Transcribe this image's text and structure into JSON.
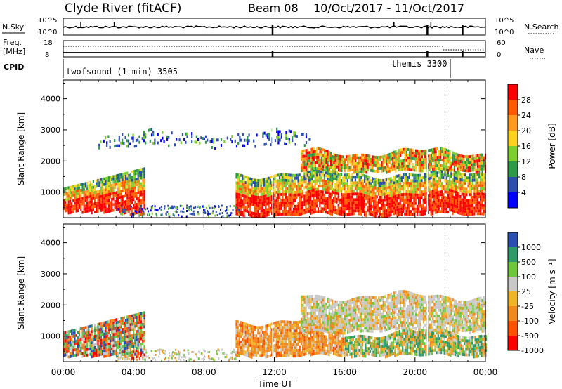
{
  "header": {
    "station": "Clyde River (fitACF)",
    "beam": "Beam 08",
    "date_range": "10/Oct/2017 - 11/Oct/2017"
  },
  "status_rows": {
    "nsky_label": "N.Sky",
    "nsearch_label": "N.Search",
    "freq_label_1": "Freq.",
    "freq_label_2": "[MHz]",
    "nave_label": "Nave",
    "cpid_label": "CPID",
    "nsky_ticks": [
      "10^5",
      "10^0"
    ],
    "nsearch_ticks": [
      "10^5",
      "10^0"
    ],
    "freq_ticks": [
      "18",
      "8"
    ],
    "nave_ticks": [
      "60",
      "0"
    ],
    "cpid_modes": [
      {
        "label": "twofsound (1-min) 3505",
        "start_h": 0,
        "end_h": 21.7
      },
      {
        "label": "themis 3300",
        "start_h": 21.7,
        "end_h": 24
      }
    ]
  },
  "chart_data": [
    {
      "type": "heatmap",
      "name": "power",
      "xlabel": "",
      "ylabel": "Slant Range [km]",
      "xlim": [
        0,
        24
      ],
      "ylim": [
        180,
        4600
      ],
      "yticks": [
        "1000",
        "2000",
        "3000",
        "4000"
      ],
      "xticks": [
        "00:00",
        "04:00",
        "08:00",
        "12:00",
        "16:00",
        "20:00",
        "00:00"
      ],
      "colorbar": {
        "label": "Power [dB]",
        "ticks": [
          "28",
          "24",
          "20",
          "16",
          "12",
          "8",
          "4"
        ],
        "colors": [
          "#ff0000",
          "#ff5a00",
          "#ff9a1e",
          "#ffd21e",
          "#7ccf2c",
          "#2e9a48",
          "#2c4fae",
          "#0000ff"
        ]
      },
      "echo_regions": [
        {
          "t0": 0.0,
          "t1": 4.6,
          "r0": 350,
          "r1": 1800,
          "level": "high"
        },
        {
          "t0": 9.8,
          "t1": 24.0,
          "r0": 300,
          "r1": 1600,
          "level": "high"
        },
        {
          "t0": 13.5,
          "t1": 24.0,
          "r0": 1700,
          "r1": 2300,
          "level": "mid"
        },
        {
          "t0": 2.0,
          "t1": 14.0,
          "r0": 2500,
          "r1": 2900,
          "level": "low"
        }
      ]
    },
    {
      "type": "heatmap",
      "name": "velocity",
      "xlabel": "Time UT",
      "ylabel": "Slant Range [km]",
      "xlim": [
        0,
        24
      ],
      "ylim": [
        180,
        4600
      ],
      "yticks": [
        "1000",
        "2000",
        "3000",
        "4000"
      ],
      "xticks": [
        "00:00",
        "04:00",
        "08:00",
        "12:00",
        "16:00",
        "20:00",
        "00:00"
      ],
      "colorbar": {
        "label": "Velocity [m s⁻¹]",
        "ticks": [
          "1000",
          "500",
          "100",
          "25",
          "-25",
          "-100",
          "-500",
          "-1000"
        ],
        "colors": [
          "#2a4fb0",
          "#2e9a6a",
          "#6cc83a",
          "#c8c8c8",
          "#f0b428",
          "#f08a1e",
          "#ff5000",
          "#ff0000"
        ]
      },
      "echo_regions": [
        {
          "t0": 0.0,
          "t1": 4.6,
          "r0": 350,
          "r1": 1800,
          "level": "mixed-positive"
        },
        {
          "t0": 9.8,
          "t1": 16.0,
          "r0": 400,
          "r1": 1500,
          "level": "negative"
        },
        {
          "t0": 16.0,
          "t1": 24.0,
          "r0": 400,
          "r1": 1100,
          "level": "positive"
        },
        {
          "t0": 13.5,
          "t1": 24.0,
          "r0": 1200,
          "r1": 2300,
          "level": "near-zero"
        }
      ]
    }
  ]
}
